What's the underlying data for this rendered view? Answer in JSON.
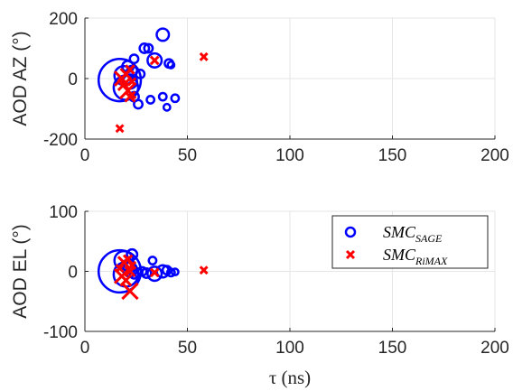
{
  "chart_data": [
    {
      "type": "scatter",
      "ylabel": "AOD AZ (°)",
      "xlabel": "",
      "xlim": [
        0,
        200
      ],
      "ylim": [
        -200,
        200
      ],
      "xticks": [
        "0",
        "50",
        "100",
        "150",
        "200"
      ],
      "yticks": [
        "-200",
        "0",
        "200"
      ],
      "grid": true,
      "series": [
        {
          "name": "SMC_SAGE",
          "marker": "circle",
          "color": "#0000ff",
          "points": [
            {
              "x": 17,
              "y": -5,
              "size": 4.5
            },
            {
              "x": 19,
              "y": 10,
              "size": 2
            },
            {
              "x": 20,
              "y": -30,
              "size": 2.6
            },
            {
              "x": 21,
              "y": 40,
              "size": 1.2
            },
            {
              "x": 22,
              "y": -10,
              "size": 1.5
            },
            {
              "x": 23,
              "y": 25,
              "size": 1.1
            },
            {
              "x": 24,
              "y": 65,
              "size": 0.9
            },
            {
              "x": 24,
              "y": -60,
              "size": 1
            },
            {
              "x": 26,
              "y": -85,
              "size": 0.9
            },
            {
              "x": 27,
              "y": 15,
              "size": 0.9
            },
            {
              "x": 29,
              "y": 100,
              "size": 1
            },
            {
              "x": 31,
              "y": 100,
              "size": 0.9
            },
            {
              "x": 32,
              "y": -70,
              "size": 0.8
            },
            {
              "x": 34,
              "y": 60,
              "size": 1.5
            },
            {
              "x": 38,
              "y": 145,
              "size": 1.3
            },
            {
              "x": 38,
              "y": -60,
              "size": 0.8
            },
            {
              "x": 40,
              "y": -95,
              "size": 0.7
            },
            {
              "x": 41,
              "y": 50,
              "size": 0.9
            },
            {
              "x": 42,
              "y": 45,
              "size": 0.7
            },
            {
              "x": 44,
              "y": -65,
              "size": 0.8
            }
          ]
        },
        {
          "name": "SMC_RiMAX",
          "marker": "x",
          "color": "#ff0000",
          "points": [
            {
              "x": 17,
              "y": -165,
              "size": 1
            },
            {
              "x": 18,
              "y": 0,
              "size": 2
            },
            {
              "x": 19,
              "y": -20,
              "size": 1.6
            },
            {
              "x": 20,
              "y": 15,
              "size": 1.5
            },
            {
              "x": 21,
              "y": -40,
              "size": 2.2
            },
            {
              "x": 22,
              "y": 30,
              "size": 1.2
            },
            {
              "x": 22,
              "y": -60,
              "size": 1.4
            },
            {
              "x": 23,
              "y": -10,
              "size": 1
            },
            {
              "x": 34,
              "y": 60,
              "size": 1.1
            },
            {
              "x": 58,
              "y": 72,
              "size": 1
            }
          ]
        }
      ]
    },
    {
      "type": "scatter",
      "ylabel": "AOD EL (°)",
      "xlabel": "τ (ns)",
      "xlim": [
        0,
        200
      ],
      "ylim": [
        -100,
        100
      ],
      "xticks": [
        "0",
        "50",
        "100",
        "150",
        "200"
      ],
      "yticks": [
        "-100",
        "0",
        "100"
      ],
      "grid": true,
      "legend": {
        "position": "top-right",
        "entries": [
          {
            "label": "SMC",
            "sub": "SAGE",
            "marker": "circle",
            "color": "#0000ff"
          },
          {
            "label": "SMC",
            "sub": "RiMAX",
            "marker": "x",
            "color": "#ff0000"
          }
        ]
      },
      "series": [
        {
          "name": "SMC_SAGE",
          "marker": "circle",
          "color": "#0000ff",
          "points": [
            {
              "x": 17,
              "y": 0,
              "size": 4.5
            },
            {
              "x": 19,
              "y": 18,
              "size": 2
            },
            {
              "x": 20,
              "y": -5,
              "size": 2.6
            },
            {
              "x": 21,
              "y": 10,
              "size": 1.2
            },
            {
              "x": 22,
              "y": 3,
              "size": 1.5
            },
            {
              "x": 23,
              "y": 28,
              "size": 1.1
            },
            {
              "x": 24,
              "y": -5,
              "size": 0.9
            },
            {
              "x": 26,
              "y": -2,
              "size": 0.9
            },
            {
              "x": 28,
              "y": 0,
              "size": 0.9
            },
            {
              "x": 30,
              "y": -3,
              "size": 1
            },
            {
              "x": 33,
              "y": 18,
              "size": 0.8
            },
            {
              "x": 34,
              "y": -4,
              "size": 1.5
            },
            {
              "x": 38,
              "y": 0,
              "size": 1.3
            },
            {
              "x": 40,
              "y": 2,
              "size": 0.9
            },
            {
              "x": 42,
              "y": -2,
              "size": 0.8
            },
            {
              "x": 44,
              "y": -1,
              "size": 0.7
            }
          ]
        },
        {
          "name": "SMC_RiMAX",
          "marker": "x",
          "color": "#ff0000",
          "points": [
            {
              "x": 17,
              "y": 5,
              "size": 1
            },
            {
              "x": 18,
              "y": -8,
              "size": 2
            },
            {
              "x": 19,
              "y": 15,
              "size": 1.6
            },
            {
              "x": 20,
              "y": -15,
              "size": 1.5
            },
            {
              "x": 21,
              "y": 20,
              "size": 1.2
            },
            {
              "x": 22,
              "y": -33,
              "size": 2.2
            },
            {
              "x": 22,
              "y": 0,
              "size": 1.4
            },
            {
              "x": 23,
              "y": 10,
              "size": 1
            },
            {
              "x": 34,
              "y": -2,
              "size": 1.1
            },
            {
              "x": 58,
              "y": 2,
              "size": 1
            }
          ]
        }
      ]
    }
  ]
}
